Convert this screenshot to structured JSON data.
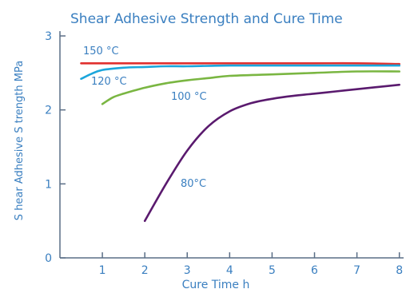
{
  "chart_data": {
    "type": "line",
    "title": "Shear Adhesive Strength and Cure Time",
    "xlabel": "Cure Time  h",
    "ylabel": "S hear Adhesive S trength  MPa",
    "xlim": [
      0,
      8.1
    ],
    "ylim": [
      0,
      3
    ],
    "xticks": [
      1,
      2,
      3,
      4,
      5,
      6,
      7,
      8
    ],
    "yticks": [
      0,
      1,
      2,
      3
    ],
    "grid": false,
    "colors": {
      "text": "#3a7fc0",
      "axis": "#5a6e86"
    },
    "series": [
      {
        "name": "150 °C",
        "color": "#e0302f",
        "x": [
          0.5,
          1,
          2,
          3,
          4,
          5,
          6,
          7,
          8
        ],
        "y": [
          2.63,
          2.63,
          2.63,
          2.63,
          2.63,
          2.63,
          2.63,
          2.63,
          2.62
        ]
      },
      {
        "name": "120 °C",
        "color": "#1ba6dc",
        "x": [
          0.5,
          0.75,
          1,
          1.5,
          2,
          2.5,
          3,
          4,
          5,
          6,
          7,
          8
        ],
        "y": [
          2.42,
          2.49,
          2.54,
          2.57,
          2.58,
          2.59,
          2.59,
          2.6,
          2.6,
          2.6,
          2.6,
          2.6
        ]
      },
      {
        "name": "100 °C",
        "color": "#7ab642",
        "x": [
          1,
          1.25,
          1.5,
          2,
          2.5,
          3,
          3.5,
          4,
          5,
          6,
          7,
          8
        ],
        "y": [
          2.08,
          2.17,
          2.22,
          2.3,
          2.36,
          2.4,
          2.43,
          2.46,
          2.48,
          2.5,
          2.52,
          2.52
        ]
      },
      {
        "name": "80°C",
        "color": "#5a1a6e",
        "x": [
          2,
          2.5,
          3,
          3.5,
          4,
          4.5,
          5,
          5.5,
          6,
          6.5,
          7,
          7.5,
          8
        ],
        "y": [
          0.5,
          1.0,
          1.45,
          1.78,
          1.98,
          2.09,
          2.15,
          2.19,
          2.22,
          2.25,
          2.28,
          2.31,
          2.34
        ]
      }
    ],
    "annotations": [
      {
        "text": "150 °C",
        "series": "150 °C"
      },
      {
        "text": "120 °C",
        "series": "120 °C"
      },
      {
        "text": "100 °C",
        "series": "100 °C"
      },
      {
        "text": "80°C",
        "series": "80°C"
      }
    ]
  }
}
